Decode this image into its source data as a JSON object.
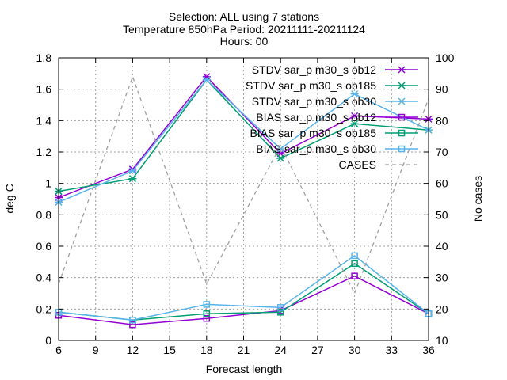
{
  "chart_data": {
    "type": "line",
    "title_lines": [
      "Selection: ALL using     7 stations",
      "Temperature 850hPa   Period: 20211111-20211124",
      "Hours: 00"
    ],
    "xlabel": "Forecast length",
    "ylabel": "deg C",
    "y2label": "No cases",
    "xlim": [
      6,
      36
    ],
    "ylim": [
      0,
      1.8
    ],
    "y2lim": [
      10,
      100
    ],
    "xticks": [
      "6",
      "9",
      "12",
      "15",
      "18",
      "21",
      "24",
      "27",
      "30",
      "33",
      "36"
    ],
    "yticks": [
      "0",
      "0.2",
      "0.4",
      "0.6",
      "0.8",
      "1",
      "1.2",
      "1.4",
      "1.6",
      "1.8"
    ],
    "y2ticks": [
      "10",
      "20",
      "30",
      "40",
      "50",
      "60",
      "70",
      "80",
      "90",
      "100"
    ],
    "grid": true,
    "legend_position": "top-right",
    "x": [
      6,
      12,
      18,
      24,
      30,
      36
    ],
    "series": [
      {
        "name": "STDV sar_p m30_s ob12",
        "axis": "y1",
        "marker": "x-star",
        "color": "#9400d3",
        "dash": false,
        "values": [
          0.91,
          1.09,
          1.68,
          1.19,
          1.43,
          1.41
        ]
      },
      {
        "name": "STDV sar_p m30_s ob185",
        "axis": "y1",
        "marker": "x-star",
        "color": "#009e73",
        "dash": false,
        "values": [
          0.95,
          1.03,
          1.66,
          1.16,
          1.38,
          1.34
        ]
      },
      {
        "name": "STDV sar_p m30_s ob30",
        "axis": "y1",
        "marker": "x-star",
        "color": "#56b4e9",
        "dash": false,
        "values": [
          0.88,
          1.08,
          1.66,
          1.22,
          1.57,
          1.34
        ]
      },
      {
        "name": "BIAS sar_p m30_s ob12",
        "axis": "y1",
        "marker": "square",
        "color": "#9400d3",
        "dash": false,
        "values": [
          0.16,
          0.1,
          0.14,
          0.19,
          0.41,
          0.17
        ]
      },
      {
        "name": "BIAS sar_p m30_s ob185",
        "axis": "y1",
        "marker": "square",
        "color": "#009e73",
        "dash": false,
        "values": [
          0.18,
          0.13,
          0.17,
          0.18,
          0.49,
          0.17
        ]
      },
      {
        "name": "BIAS sar_p m30_s ob30",
        "axis": "y1",
        "marker": "square",
        "color": "#56b4e9",
        "dash": false,
        "values": [
          0.18,
          0.13,
          0.23,
          0.21,
          0.54,
          0.17
        ]
      },
      {
        "name": "CASES",
        "axis": "y2",
        "marker": "none",
        "color": "#a0a0a0",
        "dash": true,
        "values": [
          28,
          94,
          28,
          72,
          25,
          87
        ]
      }
    ]
  }
}
